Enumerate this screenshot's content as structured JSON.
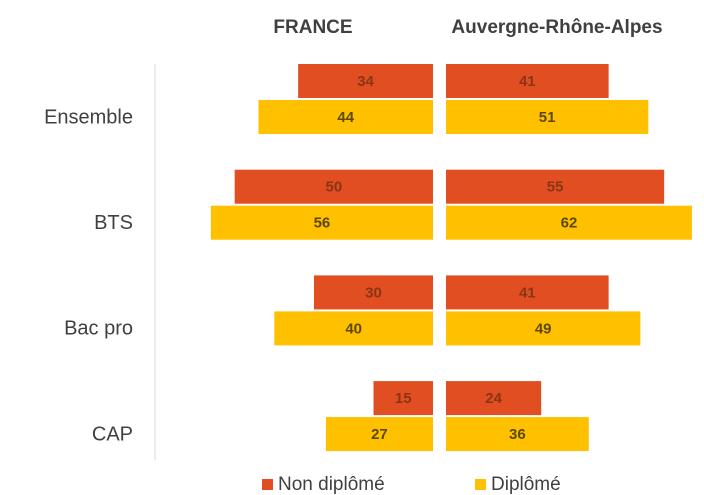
{
  "chart_data": {
    "type": "butterfly-bar",
    "categories": [
      "Ensemble",
      "BTS",
      "Bac pro",
      "CAP"
    ],
    "legend": [
      {
        "name": "Non diplômé",
        "color": "#e04e22"
      },
      {
        "name": "Diplômé",
        "color": "#ffc000"
      }
    ],
    "label_colors": [
      "#8a3514",
      "#5c4800"
    ],
    "xlim": [
      0,
      60
    ],
    "panels": [
      {
        "title": "FRANCE",
        "direction": "left",
        "series": [
          {
            "values": [
              34,
              50,
              30,
              15
            ]
          },
          {
            "values": [
              44,
              56,
              40,
              27
            ]
          }
        ]
      },
      {
        "title": "Auvergne-Rhône-Alpes",
        "direction": "right",
        "series": [
          {
            "values": [
              41,
              55,
              41,
              24
            ]
          },
          {
            "values": [
              51,
              62,
              49,
              36
            ]
          }
        ]
      }
    ]
  }
}
